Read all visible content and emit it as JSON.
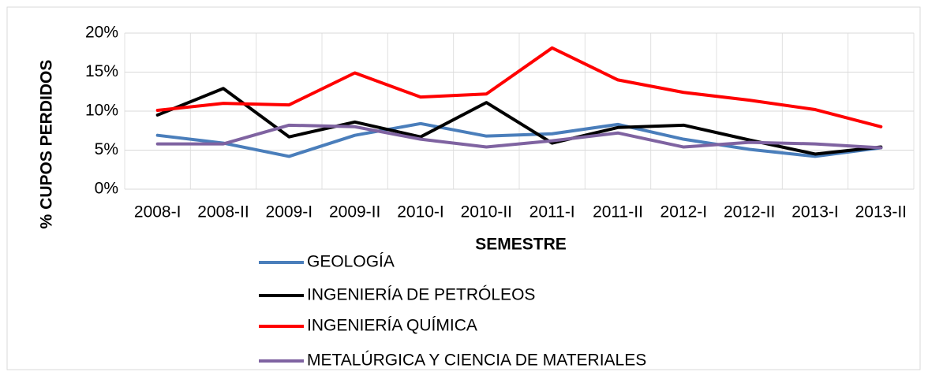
{
  "chart_data": {
    "type": "line",
    "x_label": "SEMESTRE",
    "y_label": "% CUPOS PERDIDOS",
    "categories": [
      "2008-I",
      "2008-II",
      "2009-I",
      "2009-II",
      "2010-I",
      "2010-II",
      "2011-I",
      "2011-II",
      "2012-I",
      "2012-II",
      "2013-I",
      "2013-II"
    ],
    "series": [
      {
        "name": "GEOLOGÍA",
        "color": "#4a7ebb",
        "values": [
          6.9,
          5.9,
          4.2,
          6.9,
          8.4,
          6.8,
          7.1,
          8.3,
          6.4,
          5.1,
          4.2,
          5.3
        ]
      },
      {
        "name": "INGENIERÍA DE PETRÓLEOS",
        "color": "#000000",
        "values": [
          9.5,
          12.9,
          6.7,
          8.6,
          6.7,
          11.1,
          5.9,
          7.9,
          8.2,
          6.3,
          4.5,
          5.4
        ]
      },
      {
        "name": "INGENIERÍA QUÍMICA",
        "color": "#ff0000",
        "values": [
          10.1,
          11.0,
          10.8,
          14.9,
          11.8,
          12.2,
          18.1,
          14.0,
          12.4,
          11.4,
          10.2,
          8.0
        ]
      },
      {
        "name": "METALÚRGICA Y CIENCIA DE MATERIALES",
        "color": "#7f63a1",
        "values": [
          5.8,
          5.8,
          8.2,
          8.0,
          6.4,
          5.4,
          6.2,
          7.2,
          5.4,
          6.0,
          5.8,
          5.3
        ]
      }
    ],
    "ylim": [
      0,
      20
    ],
    "yticks": [
      {
        "value": 0,
        "label": "0%"
      },
      {
        "value": 5,
        "label": "5%"
      },
      {
        "value": 10,
        "label": "10%"
      },
      {
        "value": 15,
        "label": "15%"
      },
      {
        "value": 20,
        "label": "20%"
      }
    ],
    "grid": true,
    "legend": "bottom"
  }
}
